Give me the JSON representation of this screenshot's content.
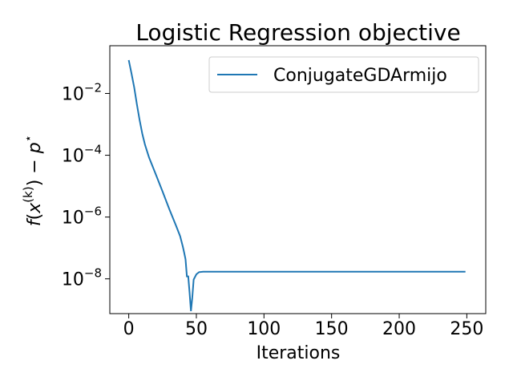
{
  "chart_data": {
    "type": "line",
    "title": "Logistic Regression objective",
    "xlabel": "Iterations",
    "ylabel_math": "f(x^(k)) − p*",
    "ylabel_parts": {
      "f": "f",
      "open_paren": "(",
      "x": "x",
      "k_superscript": "(k)",
      "close_minus_p": ") − ",
      "p": "p",
      "star": "⋆"
    },
    "xscale": "linear",
    "yscale": "log",
    "xlim": [
      -14,
      264
    ],
    "ylim": [
      7.5e-10,
      0.35
    ],
    "xticks": [
      0,
      50,
      100,
      150,
      200,
      250
    ],
    "xtick_labels": [
      "0",
      "50",
      "100",
      "150",
      "200",
      "250"
    ],
    "yticks": [
      {
        "value": 0.01,
        "base": "10",
        "exp": "−2"
      },
      {
        "value": 0.0001,
        "base": "10",
        "exp": "−4"
      },
      {
        "value": 1e-06,
        "base": "10",
        "exp": "−6"
      },
      {
        "value": 1e-08,
        "base": "10",
        "exp": "−8"
      }
    ],
    "grid": false,
    "legend_position": "top-right",
    "series": [
      {
        "name": "ConjugateGDArmijo",
        "color": "#1f77b4",
        "points": [
          [
            0,
            0.12
          ],
          [
            2,
            0.045
          ],
          [
            4,
            0.016
          ],
          [
            6,
            0.0045
          ],
          [
            8,
            0.0014
          ],
          [
            10,
            0.0005
          ],
          [
            12,
            0.00022
          ],
          [
            15,
            8.5e-05
          ],
          [
            20,
            2.4e-05
          ],
          [
            25,
            6.7e-06
          ],
          [
            30,
            1.8e-06
          ],
          [
            35,
            5.2e-07
          ],
          [
            38,
            2.4e-07
          ],
          [
            40,
            1.1e-07
          ],
          [
            41,
            7e-08
          ],
          [
            42,
            4.3e-08
          ],
          [
            43,
            1.2e-08
          ],
          [
            44,
            1.2e-08
          ],
          [
            45,
            3.5e-09
          ],
          [
            46,
            9e-10
          ],
          [
            47,
            2.5e-09
          ],
          [
            48,
            9.5e-09
          ],
          [
            50,
            1.4e-08
          ],
          [
            52,
            1.65e-08
          ],
          [
            55,
            1.7e-08
          ],
          [
            60,
            1.7e-08
          ],
          [
            100,
            1.7e-08
          ],
          [
            150,
            1.7e-08
          ],
          [
            200,
            1.7e-08
          ],
          [
            249,
            1.7e-08
          ]
        ]
      }
    ]
  }
}
